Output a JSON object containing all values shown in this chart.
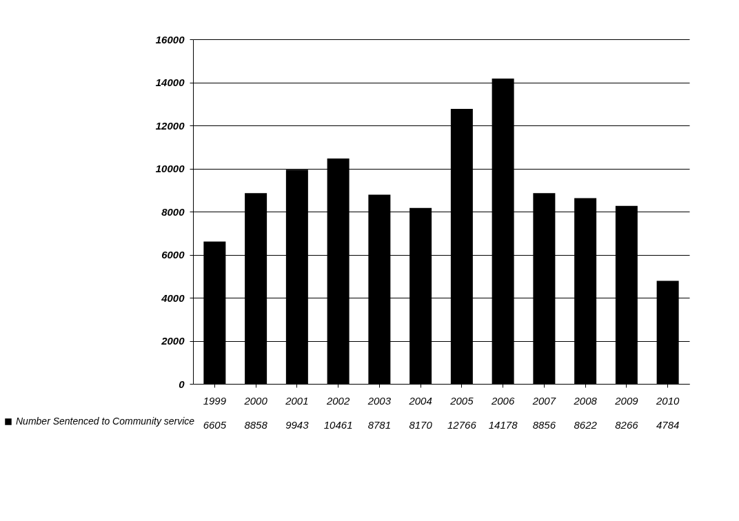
{
  "chart_data": {
    "type": "bar",
    "categories": [
      "1999",
      "2000",
      "2001",
      "2002",
      "2003",
      "2004",
      "2005",
      "2006",
      "2007",
      "2008",
      "2009",
      "2010"
    ],
    "series": [
      {
        "name": "Number Sentenced to Community service",
        "color": "#000000",
        "values": [
          6605,
          8858,
          9943,
          10461,
          8781,
          8170,
          12766,
          14178,
          8856,
          8622,
          8266,
          4784
        ]
      }
    ],
    "ylim": [
      0,
      16000
    ],
    "yticks": [
      0,
      2000,
      4000,
      6000,
      8000,
      10000,
      12000,
      14000,
      16000
    ],
    "grid": "y",
    "value_labels": [
      "6605",
      "8858",
      "9943",
      "10461",
      "8781",
      "8170",
      "12766",
      "14178",
      "8856",
      "8622",
      "8266",
      "4784"
    ],
    "legend": "bottom left"
  }
}
